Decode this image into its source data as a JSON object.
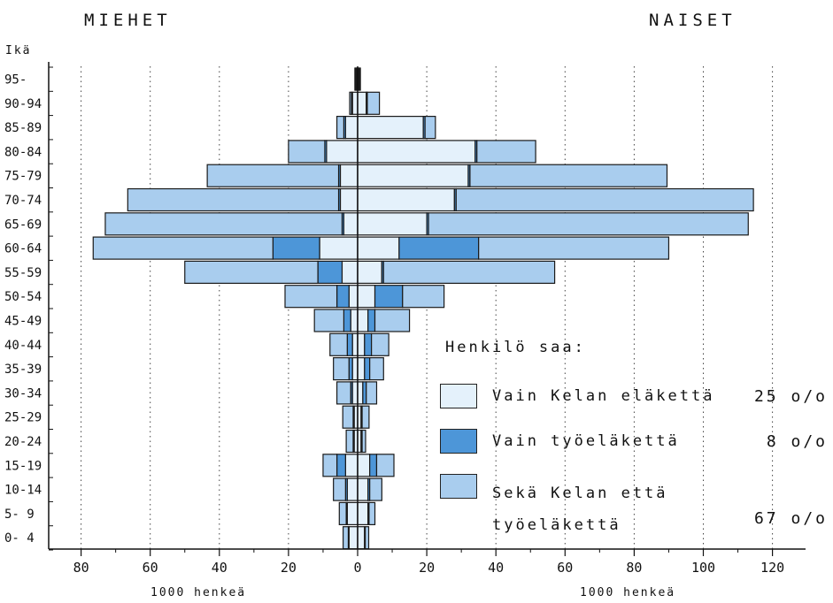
{
  "chart_data": {
    "type": "bar",
    "orientation": "horizontal",
    "layout": "population-pyramid",
    "left_title": "MIEHET",
    "right_title": "NAISET",
    "category_axis_title": "Ikä",
    "value_axis_unit": "1000 henkeä",
    "categories": [
      "95-",
      "90-94",
      "85-89",
      "80-84",
      "75-79",
      "70-74",
      "65-69",
      "60-64",
      "55-59",
      "50-54",
      "45-49",
      "40-44",
      "35-39",
      "30-34",
      "25-29",
      "20-24",
      "15-19",
      "10-14",
      "5- 9",
      "0- 4"
    ],
    "x_ticks_left": [
      "80",
      "60",
      "40",
      "20",
      "0"
    ],
    "x_ticks_right": [
      "20",
      "40",
      "60",
      "80",
      "100",
      "120"
    ],
    "xlim_left": [
      0,
      80
    ],
    "xlim_right": [
      0,
      120
    ],
    "stacked": true,
    "grid": "vertical dotted",
    "legend_title": "Henkilö saa:",
    "legend_position": "lower-right",
    "series": [
      {
        "name": "Vain Kelan eläkettä",
        "percent_label": "25 o/o",
        "color": "#e4f1fb",
        "men": [
          0.3,
          1.5,
          3.5,
          9,
          5,
          5,
          4,
          11,
          4.5,
          2.5,
          2,
          1.5,
          1.5,
          1.5,
          1,
          1,
          3.5,
          3,
          3,
          2.5
        ],
        "women": [
          0.3,
          2.5,
          19,
          34,
          32,
          28,
          20,
          12,
          7,
          5,
          3,
          2,
          2,
          1.5,
          1,
          1,
          3.5,
          3,
          3,
          2
        ]
      },
      {
        "name": "Vain työeläkettä",
        "percent_label": "8 o/o",
        "color": "#4d96d8",
        "men": [
          0.3,
          0.3,
          0.5,
          0.5,
          0.5,
          0.5,
          0.5,
          13.5,
          7,
          3.5,
          2,
          1.5,
          1,
          0.5,
          0.3,
          0.3,
          2.5,
          0.5,
          0.3,
          0.2
        ],
        "women": [
          0.3,
          0.3,
          0.5,
          0.5,
          0.5,
          0.5,
          0.5,
          23,
          0.5,
          8,
          2,
          2,
          1.5,
          1,
          0.3,
          0.3,
          2,
          0.5,
          0.3,
          0.2
        ]
      },
      {
        "name": "Sekä Kelan että työeläkettä",
        "percent_label": "67 o/o",
        "color": "#a9cdee",
        "men": [
          0.2,
          0.5,
          2,
          10.5,
          38,
          61,
          68.5,
          52,
          38.5,
          15,
          8.5,
          5,
          4.5,
          4,
          3,
          2,
          4,
          3.5,
          2,
          1.5
        ],
        "women": [
          0.2,
          3.5,
          3,
          17,
          57,
          86,
          92.5,
          55,
          49.5,
          12,
          10,
          5,
          4,
          3,
          2,
          1,
          5,
          3.5,
          1.7,
          1
        ]
      }
    ]
  }
}
